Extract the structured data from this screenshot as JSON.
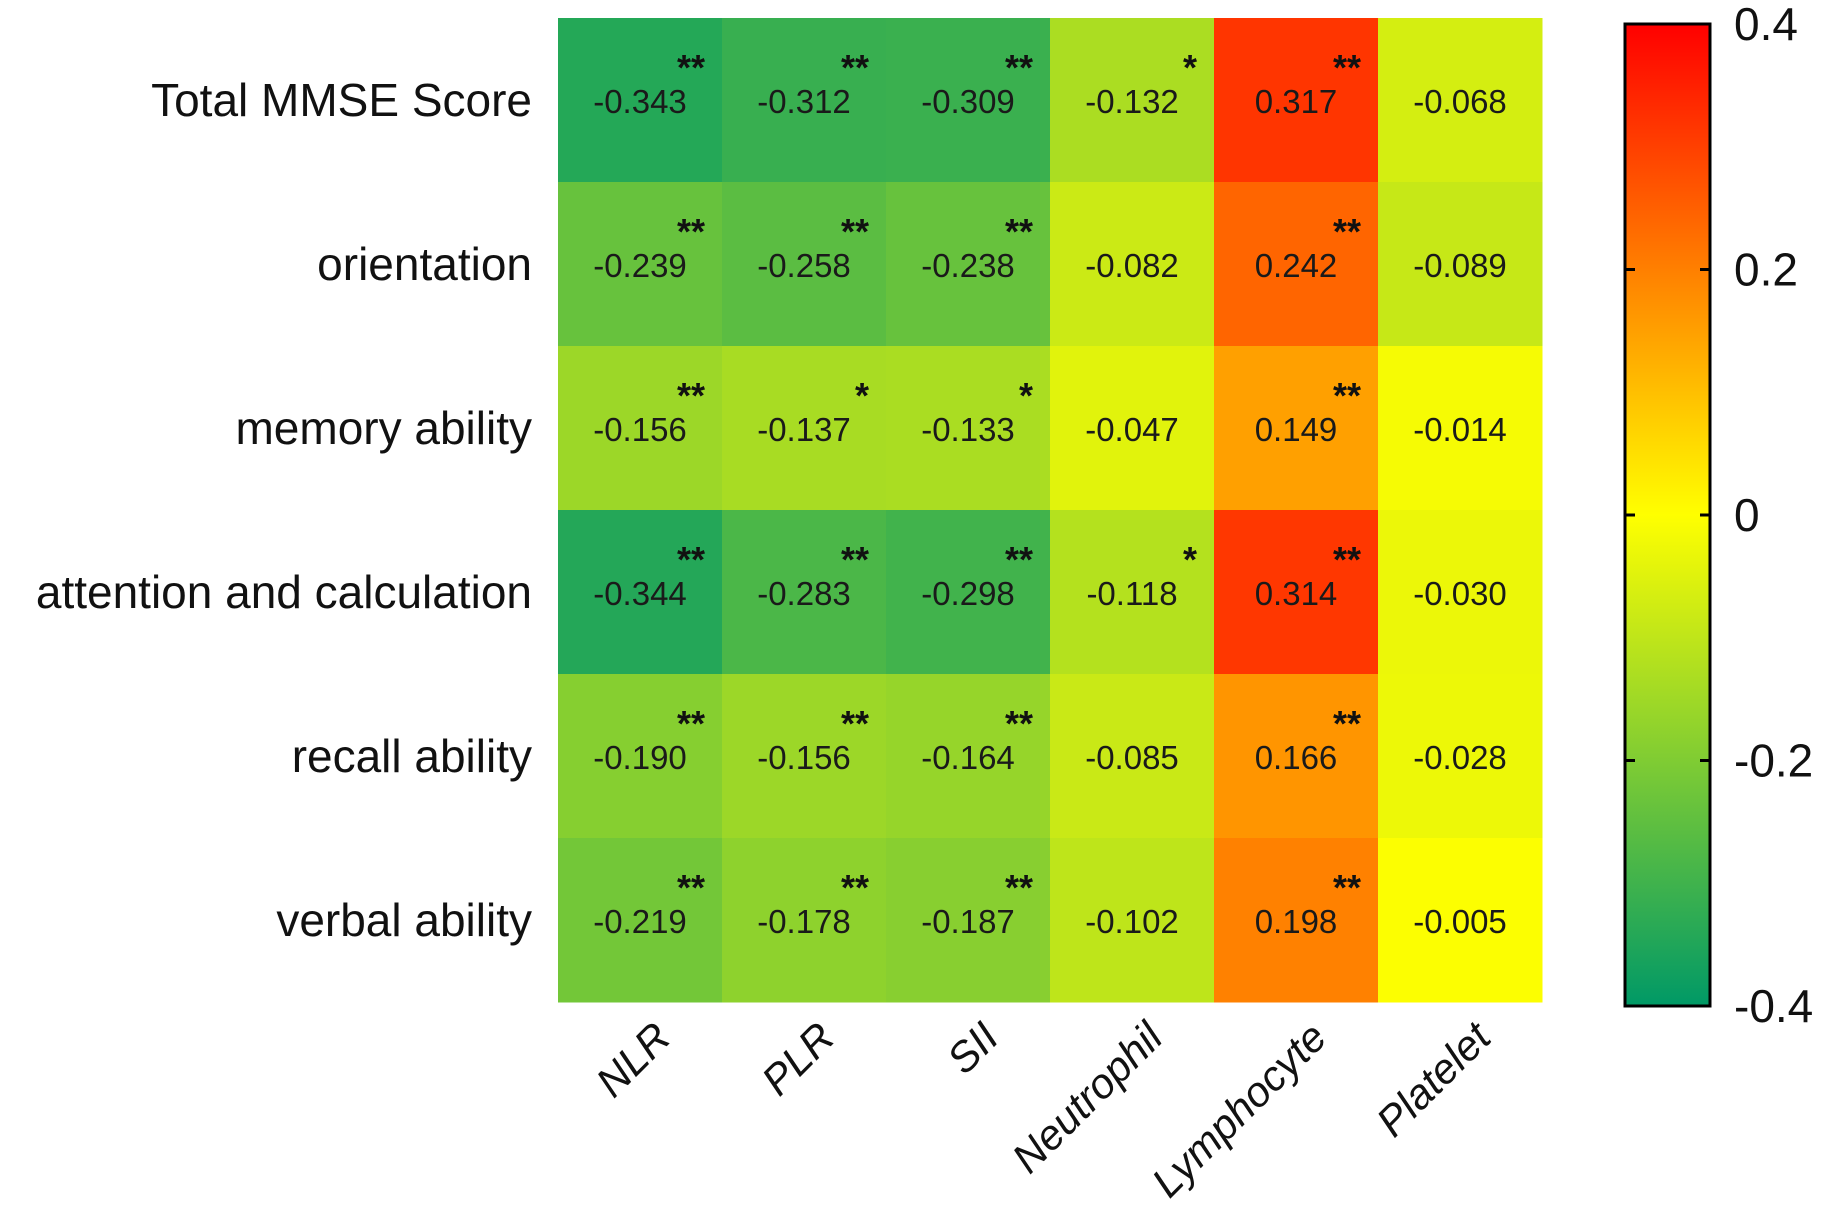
{
  "chart_data": {
    "type": "heatmap",
    "title": "",
    "rows": [
      "Total MMSE Score",
      "orientation",
      "memory ability",
      "attention and calculation",
      "recall ability",
      "verbal ability"
    ],
    "columns": [
      "NLR",
      "PLR",
      "SII",
      "Neutrophil",
      "Lymphocyte",
      "Platelet"
    ],
    "values": [
      [
        -0.343,
        -0.312,
        -0.309,
        -0.132,
        0.317,
        -0.068
      ],
      [
        -0.239,
        -0.258,
        -0.238,
        -0.082,
        0.242,
        -0.089
      ],
      [
        -0.156,
        -0.137,
        -0.133,
        -0.047,
        0.149,
        -0.014
      ],
      [
        -0.344,
        -0.283,
        -0.298,
        -0.118,
        0.314,
        -0.03
      ],
      [
        -0.19,
        -0.156,
        -0.164,
        -0.085,
        0.166,
        -0.028
      ],
      [
        -0.219,
        -0.178,
        -0.187,
        -0.102,
        0.198,
        -0.005
      ]
    ],
    "value_labels": [
      [
        "-0.343",
        "-0.312",
        "-0.309",
        "-0.132",
        "0.317",
        "-0.068"
      ],
      [
        "-0.239",
        "-0.258",
        "-0.238",
        "-0.082",
        "0.242",
        "-0.089"
      ],
      [
        "-0.156",
        "-0.137",
        "-0.133",
        "-0.047",
        "0.149",
        "-0.014"
      ],
      [
        "-0.344",
        "-0.283",
        "-0.298",
        "-0.118",
        "0.314",
        "-0.030"
      ],
      [
        "-0.190",
        "-0.156",
        "-0.164",
        "-0.085",
        "0.166",
        "-0.028"
      ],
      [
        "-0.219",
        "-0.178",
        "-0.187",
        "-0.102",
        "0.198",
        "-0.005"
      ]
    ],
    "significance": [
      [
        "**",
        "**",
        "**",
        "*",
        "**",
        ""
      ],
      [
        "**",
        "**",
        "**",
        "",
        "**",
        ""
      ],
      [
        "**",
        "*",
        "*",
        "",
        "**",
        ""
      ],
      [
        "**",
        "**",
        "**",
        "*",
        "**",
        ""
      ],
      [
        "**",
        "**",
        "**",
        "",
        "**",
        ""
      ],
      [
        "**",
        "**",
        "**",
        "",
        "**",
        ""
      ]
    ],
    "colorbar": {
      "range": [
        -0.4,
        0.4
      ],
      "ticks": [
        0.4,
        0.2,
        0,
        -0.2,
        -0.4
      ],
      "tick_labels": [
        "0.4",
        "0.2",
        "0",
        "-0.2",
        "-0.4"
      ],
      "colors": [
        "#009966",
        "#ffff00",
        "#ff0000"
      ]
    }
  }
}
